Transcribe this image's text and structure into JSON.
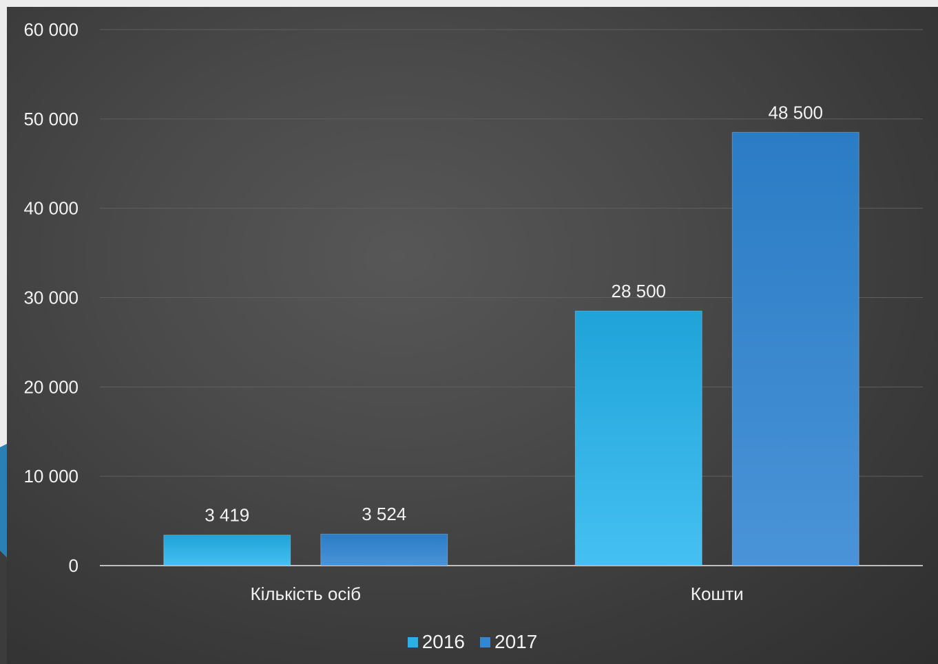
{
  "colors": {
    "series_2016": "#2bb0e6",
    "series_2017": "#3386d0",
    "axis": "#bfbfbf",
    "gridline": "#5f5f5f",
    "text": "#f2f2f2"
  },
  "chart_data": {
    "type": "bar",
    "categories": [
      "Кількість осіб",
      "Кошти"
    ],
    "series": [
      {
        "name": "2016",
        "values": [
          3419,
          28500
        ],
        "labels": [
          "3 419",
          "28 500"
        ]
      },
      {
        "name": "2017",
        "values": [
          3524,
          48500
        ],
        "labels": [
          "3 524",
          "48 500"
        ]
      }
    ],
    "ylim": [
      0,
      60000
    ],
    "yticks": [
      0,
      10000,
      20000,
      30000,
      40000,
      50000,
      60000
    ],
    "ytick_labels": [
      "0",
      "10 000",
      "20 000",
      "30 000",
      "40 000",
      "50 000",
      "60 000"
    ],
    "grid": true,
    "legend_position": "bottom",
    "title": "",
    "xlabel": "",
    "ylabel": ""
  }
}
